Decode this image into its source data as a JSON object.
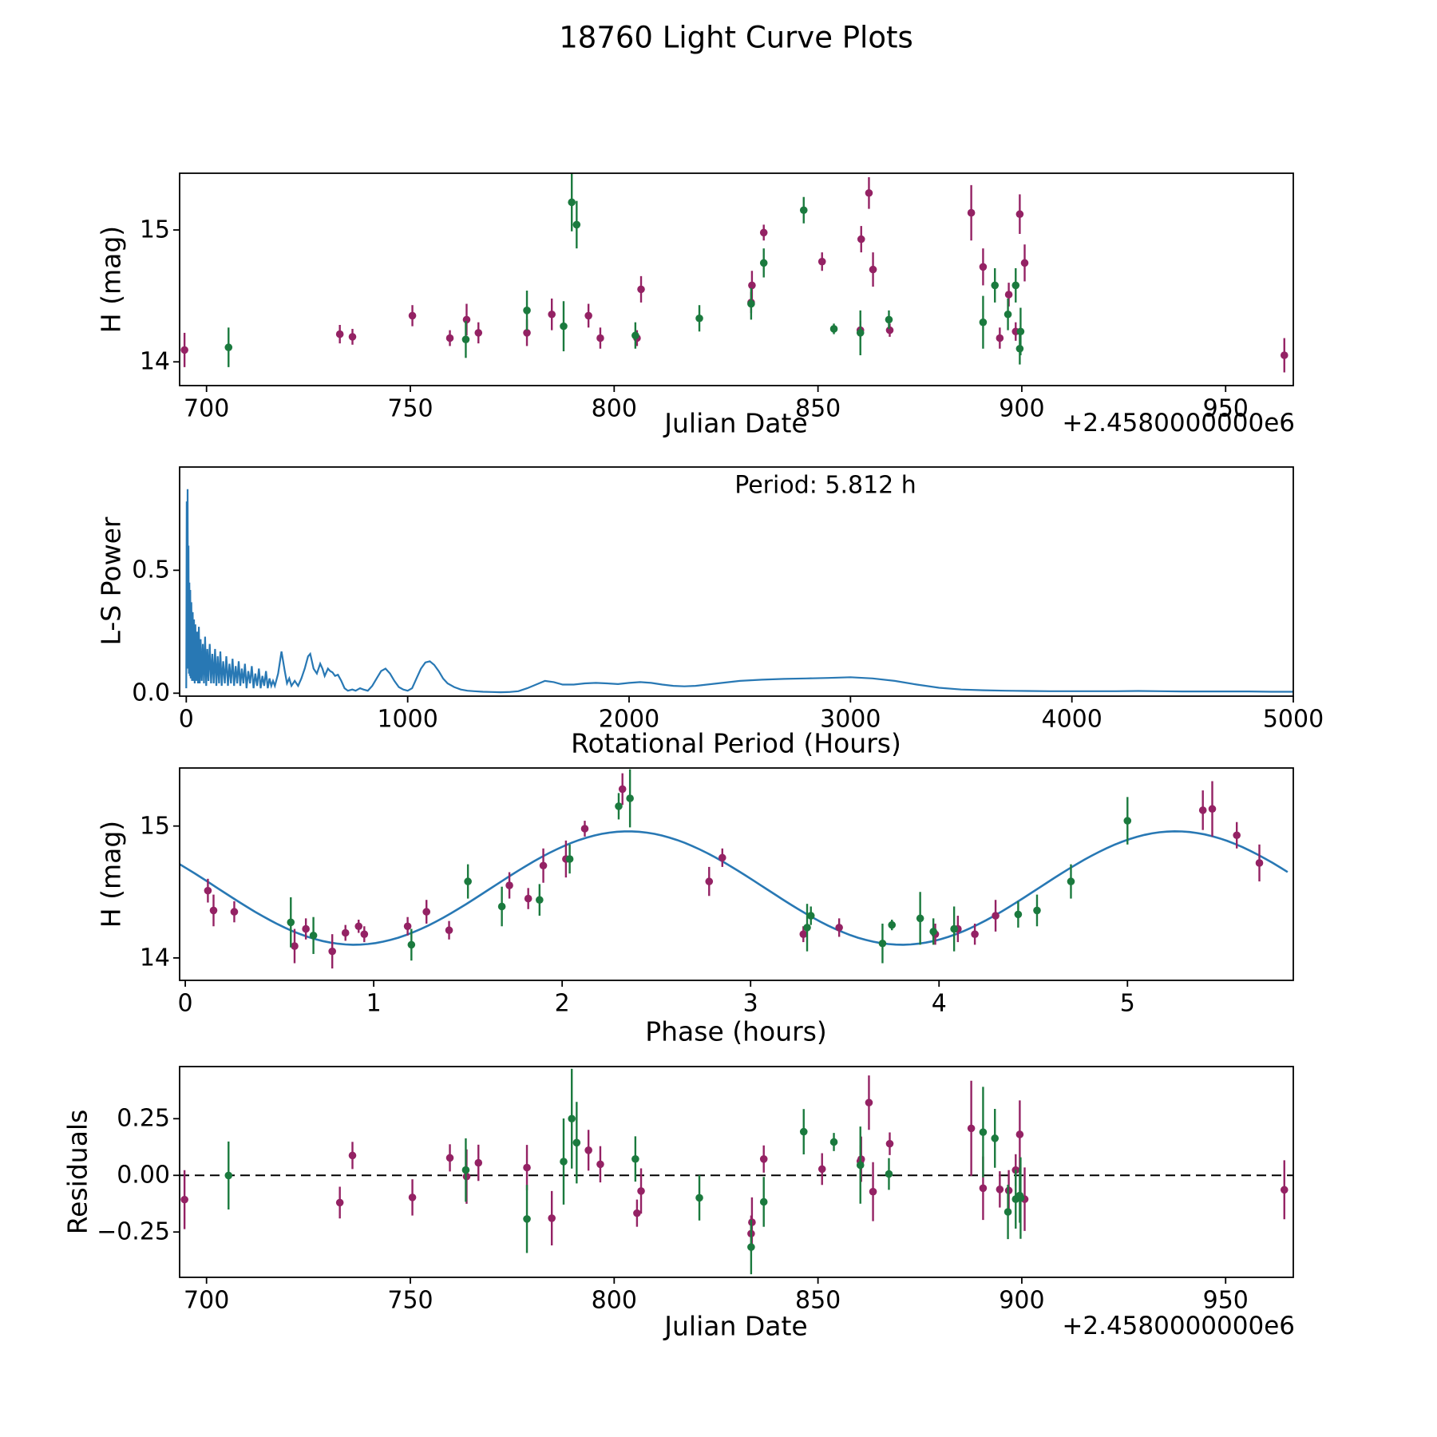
{
  "title": "18760 Light Curve Plots",
  "annotations": {
    "period_label": "Period: 5.812 h"
  },
  "colors": {
    "series_maroon": "#942264",
    "series_green": "#1b7a3e",
    "fit_line": "#2878b4",
    "zero_line": "#000000",
    "axis": "#000000"
  },
  "chart_data": {
    "type": [
      "scatter-errorbar",
      "line",
      "scatter-errorbar-with-fit",
      "scatter-errorbar"
    ],
    "observations": {
      "fields": [
        "jd_offset",
        "h_mag",
        "err_mag",
        "phase_hours",
        "series"
      ],
      "series_legend": {
        "P": "maroon points",
        "G": "green points"
      },
      "rows": [
        [
          694.6,
          14.09,
          0.13,
          0.58,
          "P"
        ],
        [
          732.7,
          14.21,
          0.07,
          1.4,
          "P"
        ],
        [
          735.8,
          14.19,
          0.06,
          0.85,
          "P"
        ],
        [
          750.5,
          14.35,
          0.08,
          0.26,
          "P"
        ],
        [
          759.7,
          14.18,
          0.06,
          0.95,
          "P"
        ],
        [
          763.8,
          14.32,
          0.12,
          4.3,
          "P"
        ],
        [
          766.7,
          14.22,
          0.08,
          0.64,
          "P"
        ],
        [
          778.6,
          14.22,
          0.1,
          4.1,
          "P"
        ],
        [
          784.7,
          14.36,
          0.12,
          0.15,
          "P"
        ],
        [
          793.7,
          14.35,
          0.09,
          1.28,
          "P"
        ],
        [
          796.6,
          14.18,
          0.08,
          3.98,
          "P"
        ],
        [
          805.6,
          14.18,
          0.06,
          3.28,
          "P"
        ],
        [
          806.6,
          14.55,
          0.1,
          1.72,
          "P"
        ],
        [
          833.8,
          14.58,
          0.11,
          2.78,
          "P"
        ],
        [
          833.6,
          14.45,
          0.08,
          1.82,
          "P"
        ],
        [
          836.7,
          14.98,
          0.06,
          2.12,
          "P"
        ],
        [
          851.0,
          14.76,
          0.07,
          2.85,
          "P"
        ],
        [
          860.4,
          14.24,
          0.07,
          1.18,
          "P"
        ],
        [
          860.6,
          14.93,
          0.1,
          5.58,
          "P"
        ],
        [
          862.5,
          15.28,
          0.12,
          2.32,
          "P"
        ],
        [
          863.5,
          14.7,
          0.13,
          1.9,
          "P"
        ],
        [
          867.6,
          14.24,
          0.05,
          0.92,
          "P"
        ],
        [
          887.6,
          15.13,
          0.21,
          5.45,
          "P"
        ],
        [
          890.5,
          14.72,
          0.14,
          5.7,
          "P"
        ],
        [
          894.6,
          14.18,
          0.08,
          4.19,
          "P"
        ],
        [
          896.8,
          14.51,
          0.09,
          0.12,
          "P"
        ],
        [
          898.5,
          14.23,
          0.07,
          3.47,
          "P"
        ],
        [
          899.5,
          15.12,
          0.15,
          5.4,
          "P"
        ],
        [
          900.7,
          14.75,
          0.14,
          2.02,
          "P"
        ],
        [
          964.4,
          14.05,
          0.13,
          0.78,
          "P"
        ],
        [
          705.4,
          14.11,
          0.15,
          3.7,
          "G"
        ],
        [
          763.6,
          14.17,
          0.14,
          0.68,
          "G"
        ],
        [
          778.6,
          14.39,
          0.15,
          1.68,
          "G"
        ],
        [
          787.6,
          14.27,
          0.19,
          0.56,
          "G"
        ],
        [
          789.6,
          15.21,
          0.22,
          2.36,
          "G"
        ],
        [
          790.8,
          15.04,
          0.18,
          5.0,
          "G"
        ],
        [
          805.2,
          14.2,
          0.1,
          3.97,
          "G"
        ],
        [
          820.9,
          14.33,
          0.1,
          4.42,
          "G"
        ],
        [
          833.6,
          14.44,
          0.12,
          1.88,
          "G"
        ],
        [
          836.7,
          14.75,
          0.11,
          2.04,
          "G"
        ],
        [
          846.5,
          15.15,
          0.1,
          2.3,
          "G"
        ],
        [
          853.9,
          14.25,
          0.04,
          3.75,
          "G"
        ],
        [
          860.4,
          14.22,
          0.17,
          4.08,
          "G"
        ],
        [
          867.4,
          14.32,
          0.07,
          3.32,
          "G"
        ],
        [
          890.5,
          14.3,
          0.2,
          3.9,
          "G"
        ],
        [
          893.4,
          14.58,
          0.13,
          1.5,
          "G"
        ],
        [
          896.6,
          14.36,
          0.12,
          4.52,
          "G"
        ],
        [
          898.5,
          14.58,
          0.13,
          4.7,
          "G"
        ],
        [
          899.7,
          14.23,
          0.18,
          3.3,
          "G"
        ],
        [
          899.5,
          14.1,
          0.12,
          1.2,
          "G"
        ]
      ]
    },
    "plots": [
      {
        "id": "light-curve",
        "title": "",
        "xlabel": "Julian Date",
        "ylabel": "H (mag)",
        "x_offset_text": "+2.4580000000e6",
        "xlim": [
          693.4,
          966.6
        ],
        "ylim": [
          13.82,
          15.43
        ],
        "xticks": [
          700,
          750,
          800,
          850,
          900,
          950
        ],
        "xtick_labels": [
          "700",
          "750",
          "800",
          "850",
          "900",
          "950"
        ],
        "yticks": [
          14,
          15
        ],
        "ytick_labels": [
          "14",
          "15"
        ]
      },
      {
        "id": "periodogram",
        "xlabel": "Rotational Period (Hours)",
        "ylabel": "L-S Power",
        "xlim": [
          -30,
          5000
        ],
        "ylim": [
          -0.012,
          0.92
        ],
        "xticks": [
          0,
          1000,
          2000,
          3000,
          4000,
          5000
        ],
        "xtick_labels": [
          "0",
          "1000",
          "2000",
          "3000",
          "4000",
          "5000"
        ],
        "yticks": [
          0.0,
          0.5
        ],
        "ytick_labels": [
          "0.0",
          "0.5"
        ],
        "best_period_hours": 5.812,
        "curve": [
          [
            0,
            0.02
          ],
          [
            2,
            0.78
          ],
          [
            4,
            0.1
          ],
          [
            6,
            0.83
          ],
          [
            8,
            0.12
          ],
          [
            10,
            0.6
          ],
          [
            12,
            0.08
          ],
          [
            14,
            0.45
          ],
          [
            16,
            0.07
          ],
          [
            18,
            0.42
          ],
          [
            20,
            0.06
          ],
          [
            23,
            0.37
          ],
          [
            26,
            0.05
          ],
          [
            29,
            0.33
          ],
          [
            32,
            0.05
          ],
          [
            35,
            0.3
          ],
          [
            38,
            0.04
          ],
          [
            41,
            0.28
          ],
          [
            45,
            0.05
          ],
          [
            49,
            0.25
          ],
          [
            53,
            0.04
          ],
          [
            57,
            0.27
          ],
          [
            61,
            0.04
          ],
          [
            65,
            0.22
          ],
          [
            70,
            0.05
          ],
          [
            75,
            0.2
          ],
          [
            80,
            0.04
          ],
          [
            85,
            0.23
          ],
          [
            90,
            0.03
          ],
          [
            95,
            0.18
          ],
          [
            100,
            0.05
          ],
          [
            106,
            0.2
          ],
          [
            112,
            0.04
          ],
          [
            118,
            0.16
          ],
          [
            124,
            0.04
          ],
          [
            130,
            0.18
          ],
          [
            136,
            0.03
          ],
          [
            142,
            0.15
          ],
          [
            148,
            0.04
          ],
          [
            154,
            0.17
          ],
          [
            160,
            0.03
          ],
          [
            167,
            0.13
          ],
          [
            174,
            0.04
          ],
          [
            181,
            0.15
          ],
          [
            188,
            0.03
          ],
          [
            195,
            0.12
          ],
          [
            202,
            0.04
          ],
          [
            209,
            0.14
          ],
          [
            216,
            0.03
          ],
          [
            223,
            0.11
          ],
          [
            230,
            0.04
          ],
          [
            237,
            0.13
          ],
          [
            244,
            0.03
          ],
          [
            251,
            0.1
          ],
          [
            258,
            0.04
          ],
          [
            265,
            0.12
          ],
          [
            272,
            0.02
          ],
          [
            280,
            0.09
          ],
          [
            288,
            0.04
          ],
          [
            296,
            0.11
          ],
          [
            304,
            0.02
          ],
          [
            312,
            0.08
          ],
          [
            320,
            0.03
          ],
          [
            328,
            0.1
          ],
          [
            336,
            0.02
          ],
          [
            344,
            0.07
          ],
          [
            352,
            0.03
          ],
          [
            360,
            0.09
          ],
          [
            368,
            0.02
          ],
          [
            376,
            0.06
          ],
          [
            384,
            0.03
          ],
          [
            392,
            0.05
          ],
          [
            400,
            0.03
          ],
          [
            415,
            0.08
          ],
          [
            430,
            0.17
          ],
          [
            445,
            0.09
          ],
          [
            455,
            0.04
          ],
          [
            465,
            0.06
          ],
          [
            475,
            0.03
          ],
          [
            490,
            0.05
          ],
          [
            505,
            0.03
          ],
          [
            520,
            0.06
          ],
          [
            535,
            0.1
          ],
          [
            550,
            0.15
          ],
          [
            560,
            0.16
          ],
          [
            575,
            0.1
          ],
          [
            590,
            0.08
          ],
          [
            605,
            0.12
          ],
          [
            615,
            0.1
          ],
          [
            625,
            0.07
          ],
          [
            640,
            0.1
          ],
          [
            650,
            0.09
          ],
          [
            660,
            0.085
          ],
          [
            672,
            0.07
          ],
          [
            685,
            0.075
          ],
          [
            700,
            0.05
          ],
          [
            715,
            0.02
          ],
          [
            730,
            0.01
          ],
          [
            750,
            0.015
          ],
          [
            765,
            0.01
          ],
          [
            785,
            0.02
          ],
          [
            800,
            0.015
          ],
          [
            820,
            0.01
          ],
          [
            840,
            0.03
          ],
          [
            860,
            0.06
          ],
          [
            880,
            0.09
          ],
          [
            900,
            0.1
          ],
          [
            920,
            0.08
          ],
          [
            940,
            0.05
          ],
          [
            960,
            0.025
          ],
          [
            980,
            0.015
          ],
          [
            1000,
            0.01
          ],
          [
            1020,
            0.02
          ],
          [
            1040,
            0.06
          ],
          [
            1060,
            0.1
          ],
          [
            1080,
            0.125
          ],
          [
            1100,
            0.13
          ],
          [
            1120,
            0.115
          ],
          [
            1140,
            0.09
          ],
          [
            1160,
            0.06
          ],
          [
            1180,
            0.04
          ],
          [
            1210,
            0.025
          ],
          [
            1240,
            0.015
          ],
          [
            1270,
            0.01
          ],
          [
            1300,
            0.008
          ],
          [
            1340,
            0.006
          ],
          [
            1380,
            0.005
          ],
          [
            1420,
            0.004
          ],
          [
            1460,
            0.005
          ],
          [
            1500,
            0.008
          ],
          [
            1540,
            0.02
          ],
          [
            1580,
            0.035
          ],
          [
            1620,
            0.05
          ],
          [
            1660,
            0.045
          ],
          [
            1700,
            0.035
          ],
          [
            1750,
            0.035
          ],
          [
            1800,
            0.04
          ],
          [
            1850,
            0.042
          ],
          [
            1900,
            0.04
          ],
          [
            1950,
            0.037
          ],
          [
            2000,
            0.042
          ],
          [
            2050,
            0.045
          ],
          [
            2100,
            0.042
          ],
          [
            2150,
            0.035
          ],
          [
            2200,
            0.03
          ],
          [
            2250,
            0.028
          ],
          [
            2300,
            0.03
          ],
          [
            2400,
            0.04
          ],
          [
            2500,
            0.05
          ],
          [
            2600,
            0.055
          ],
          [
            2700,
            0.058
          ],
          [
            2800,
            0.06
          ],
          [
            2900,
            0.062
          ],
          [
            3000,
            0.065
          ],
          [
            3100,
            0.06
          ],
          [
            3200,
            0.05
          ],
          [
            3300,
            0.035
          ],
          [
            3400,
            0.022
          ],
          [
            3500,
            0.015
          ],
          [
            3600,
            0.012
          ],
          [
            3700,
            0.01
          ],
          [
            3800,
            0.009
          ],
          [
            3900,
            0.008
          ],
          [
            4000,
            0.008
          ],
          [
            4100,
            0.008
          ],
          [
            4200,
            0.008
          ],
          [
            4300,
            0.009
          ],
          [
            4400,
            0.008
          ],
          [
            4500,
            0.007
          ],
          [
            4600,
            0.007
          ],
          [
            4700,
            0.007
          ],
          [
            4800,
            0.007
          ],
          [
            4900,
            0.006
          ],
          [
            5000,
            0.006
          ]
        ]
      },
      {
        "id": "phase-curve",
        "xlabel": "Phase (hours)",
        "ylabel": "H (mag)",
        "xlim": [
          -0.03,
          5.88
        ],
        "ylim": [
          13.83,
          15.44
        ],
        "xticks": [
          0,
          1,
          2,
          3,
          4,
          5
        ],
        "xtick_labels": [
          "0",
          "1",
          "2",
          "3",
          "4",
          "5"
        ],
        "yticks": [
          14,
          15
        ],
        "ytick_labels": [
          "14",
          "15"
        ],
        "fit_curve": {
          "mean": 14.53,
          "amplitude": 0.43,
          "phase_of_max": 2.35,
          "half_period": 2.906
        }
      },
      {
        "id": "residuals",
        "xlabel": "Julian Date",
        "ylabel": "Residuals",
        "x_offset_text": "+2.4580000000e6",
        "xlim": [
          693.4,
          966.6
        ],
        "ylim": [
          -0.45,
          0.48
        ],
        "xticks": [
          700,
          750,
          800,
          850,
          900,
          950
        ],
        "xtick_labels": [
          "700",
          "750",
          "800",
          "850",
          "900",
          "950"
        ],
        "yticks": [
          -0.25,
          0.0,
          0.25
        ],
        "ytick_labels": [
          "−0.25",
          "0.00",
          "0.25"
        ],
        "zero_line": 0.0
      }
    ]
  }
}
